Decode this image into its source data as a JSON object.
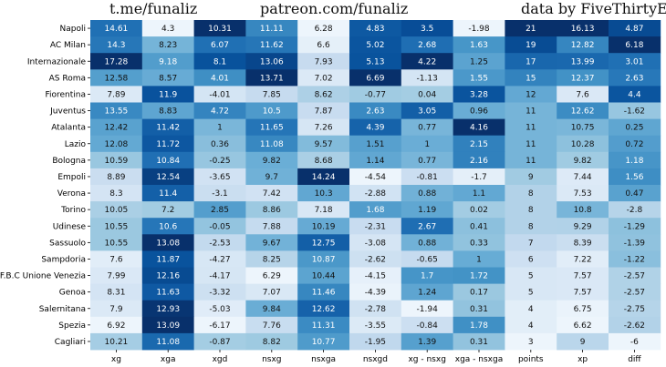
{
  "header": {
    "left_credit": "t.me/funaliz",
    "center_credit": "patreon.com/funaliz",
    "right_credit": "data by FiveThirtyEight"
  },
  "chart_data": {
    "type": "heatmap",
    "colormap": "Blues",
    "color_scale": "per-column",
    "columns": [
      "xg",
      "xga",
      "xgd",
      "nsxg",
      "nsxga",
      "nsxgd",
      "xg - nsxg",
      "xga - nsxga",
      "points",
      "xp",
      "diff"
    ],
    "rows": [
      "Napoli",
      "AC Milan",
      "Internazionale",
      "AS Roma",
      "Fiorentina",
      "Juventus",
      "Atalanta",
      "Lazio",
      "Bologna",
      "Empoli",
      "Verona",
      "Torino",
      "Udinese",
      "Sassuolo",
      "Sampdoria",
      "F.B.C Unione Venezia",
      "Genoa",
      "Salernitana",
      "Spezia",
      "Cagliari"
    ],
    "values": [
      [
        "14.61",
        "4.3",
        "10.31",
        "11.11",
        "6.28",
        "4.83",
        "3.5",
        "-1.98",
        "21",
        "16.13",
        "4.87"
      ],
      [
        "14.3",
        "8.23",
        "6.07",
        "11.62",
        "6.6",
        "5.02",
        "2.68",
        "1.63",
        "19",
        "12.82",
        "6.18"
      ],
      [
        "17.28",
        "9.18",
        "8.1",
        "13.06",
        "7.93",
        "5.13",
        "4.22",
        "1.25",
        "17",
        "13.99",
        "3.01"
      ],
      [
        "12.58",
        "8.57",
        "4.01",
        "13.71",
        "7.02",
        "6.69",
        "-1.13",
        "1.55",
        "15",
        "12.37",
        "2.63"
      ],
      [
        "7.89",
        "11.9",
        "-4.01",
        "7.85",
        "8.62",
        "-0.77",
        "0.04",
        "3.28",
        "12",
        "7.6",
        "4.4"
      ],
      [
        "13.55",
        "8.83",
        "4.72",
        "10.5",
        "7.87",
        "2.63",
        "3.05",
        "0.96",
        "11",
        "12.62",
        "-1.62"
      ],
      [
        "12.42",
        "11.42",
        "1",
        "11.65",
        "7.26",
        "4.39",
        "0.77",
        "4.16",
        "11",
        "10.75",
        "0.25"
      ],
      [
        "12.08",
        "11.72",
        "0.36",
        "11.08",
        "9.57",
        "1.51",
        "1",
        "2.15",
        "11",
        "10.28",
        "0.72"
      ],
      [
        "10.59",
        "10.84",
        "-0.25",
        "9.82",
        "8.68",
        "1.14",
        "0.77",
        "2.16",
        "11",
        "9.82",
        "1.18"
      ],
      [
        "8.89",
        "12.54",
        "-3.65",
        "9.7",
        "14.24",
        "-4.54",
        "-0.81",
        "-1.7",
        "9",
        "7.44",
        "1.56"
      ],
      [
        "8.3",
        "11.4",
        "-3.1",
        "7.42",
        "10.3",
        "-2.88",
        "0.88",
        "1.1",
        "8",
        "7.53",
        "0.47"
      ],
      [
        "10.05",
        "7.2",
        "2.85",
        "8.86",
        "7.18",
        "1.68",
        "1.19",
        "0.02",
        "8",
        "10.8",
        "-2.8"
      ],
      [
        "10.55",
        "10.6",
        "-0.05",
        "7.88",
        "10.19",
        "-2.31",
        "2.67",
        "0.41",
        "8",
        "9.29",
        "-1.29"
      ],
      [
        "10.55",
        "13.08",
        "-2.53",
        "9.67",
        "12.75",
        "-3.08",
        "0.88",
        "0.33",
        "7",
        "8.39",
        "-1.39"
      ],
      [
        "7.6",
        "11.87",
        "-4.27",
        "8.25",
        "10.87",
        "-2.62",
        "-0.65",
        "1",
        "6",
        "7.22",
        "-1.22"
      ],
      [
        "7.99",
        "12.16",
        "-4.17",
        "6.29",
        "10.44",
        "-4.15",
        "1.7",
        "1.72",
        "5",
        "7.57",
        "-2.57"
      ],
      [
        "8.31",
        "11.63",
        "-3.32",
        "7.07",
        "11.46",
        "-4.39",
        "1.24",
        "0.17",
        "5",
        "7.57",
        "-2.57"
      ],
      [
        "7.9",
        "12.93",
        "-5.03",
        "9.84",
        "12.62",
        "-2.78",
        "-1.94",
        "0.31",
        "4",
        "6.75",
        "-2.75"
      ],
      [
        "6.92",
        "13.09",
        "-6.17",
        "7.76",
        "11.31",
        "-3.55",
        "-0.84",
        "1.78",
        "4",
        "6.62",
        "-2.62"
      ],
      [
        "10.21",
        "11.08",
        "-0.87",
        "8.82",
        "10.77",
        "-1.95",
        "1.39",
        "0.31",
        "3",
        "9",
        "-6"
      ]
    ]
  }
}
